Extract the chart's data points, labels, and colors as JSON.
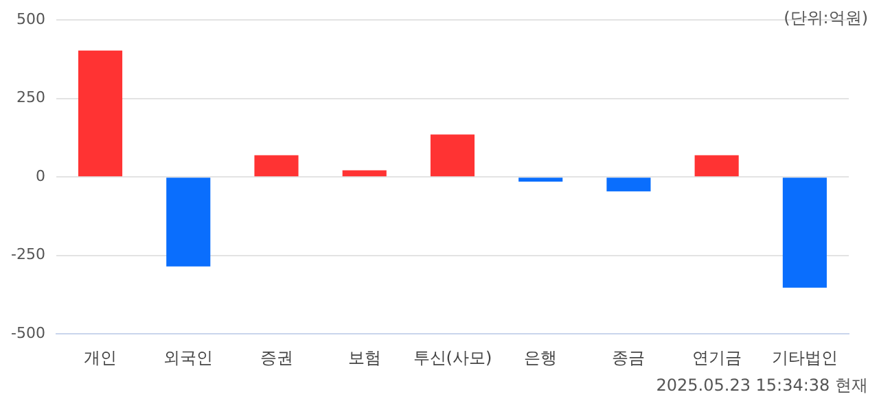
{
  "chart_data": {
    "type": "bar",
    "categories": [
      "개인",
      "외국인",
      "증권",
      "보험",
      "투신(사모)",
      "은행",
      "종금",
      "연기금",
      "기타법인"
    ],
    "values": [
      403,
      -285,
      69,
      21,
      135,
      -15,
      -46,
      69,
      -353
    ],
    "colors": [
      "#ff3333",
      "#0a6efd",
      "#ff3333",
      "#ff3333",
      "#ff3333",
      "#0a6efd",
      "#0a6efd",
      "#ff3333",
      "#0a6efd"
    ],
    "ylim": [
      -500,
      500
    ],
    "yticks": [
      -500,
      -250,
      0,
      250,
      500
    ],
    "grid": "y",
    "legend": false,
    "annotations": [
      "(단위:억원)",
      "2025.05.23 15:34:38 현재"
    ]
  }
}
